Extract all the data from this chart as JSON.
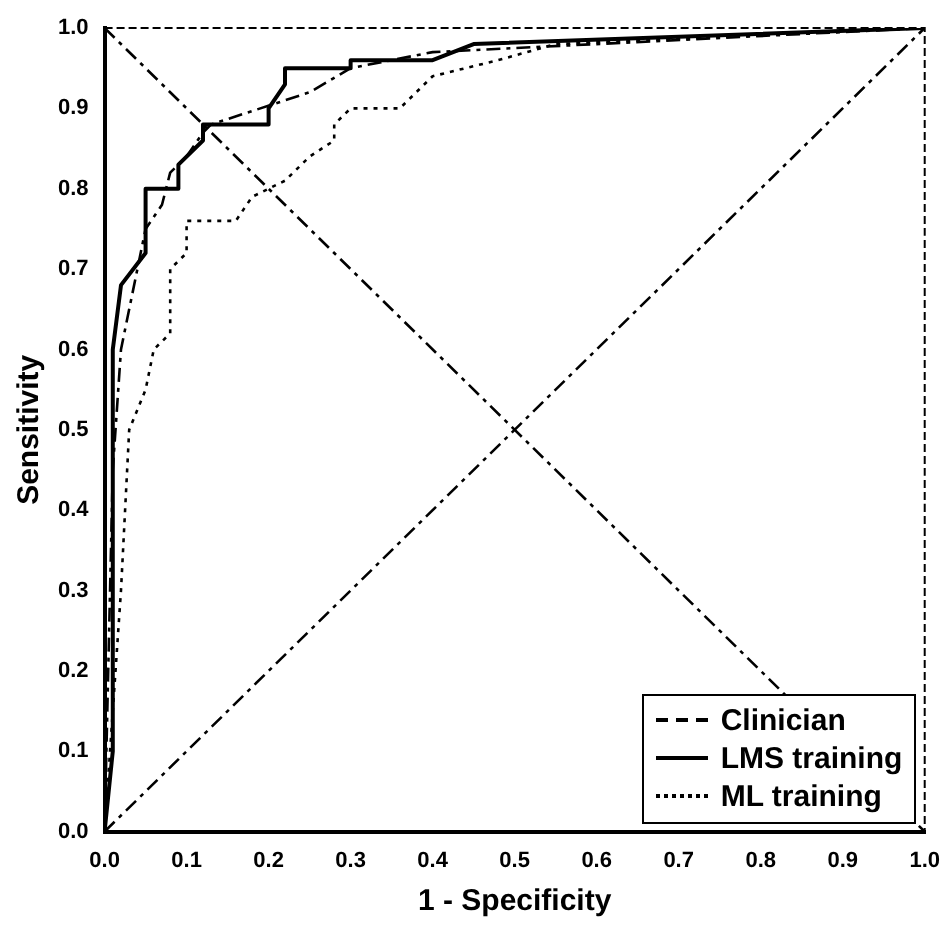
{
  "chart_data": {
    "type": "line",
    "xlabel": "1 - Specificity",
    "ylabel": "Sensitivity",
    "xlim": [
      0,
      1
    ],
    "ylim": [
      0,
      1
    ],
    "xticks": [
      {
        "value": 0,
        "label": "0.0"
      },
      {
        "value": 0.1,
        "label": "0.1"
      },
      {
        "value": 0.2,
        "label": "0.2"
      },
      {
        "value": 0.3,
        "label": "0.3"
      },
      {
        "value": 0.4,
        "label": "0.4"
      },
      {
        "value": 0.5,
        "label": "0.5"
      },
      {
        "value": 0.6,
        "label": "0.6"
      },
      {
        "value": 0.7,
        "label": "0.7"
      },
      {
        "value": 0.8,
        "label": "0.8"
      },
      {
        "value": 0.9,
        "label": "0.9"
      },
      {
        "value": 1,
        "label": "1.0"
      }
    ],
    "yticks": [
      {
        "value": 0,
        "label": "0.0"
      },
      {
        "value": 0.1,
        "label": "0.1"
      },
      {
        "value": 0.2,
        "label": "0.2"
      },
      {
        "value": 0.3,
        "label": "0.3"
      },
      {
        "value": 0.4,
        "label": "0.4"
      },
      {
        "value": 0.5,
        "label": "0.5"
      },
      {
        "value": 0.6,
        "label": "0.6"
      },
      {
        "value": 0.7,
        "label": "0.7"
      },
      {
        "value": 0.8,
        "label": "0.8"
      },
      {
        "value": 0.9,
        "label": "0.9"
      },
      {
        "value": 1,
        "label": "1.0"
      }
    ],
    "grid": false,
    "legend": "bottom right",
    "marker": "none",
    "series": [
      {
        "name": "Clinician",
        "color": "#000000",
        "line_style": "dashed",
        "x": [
          0,
          0.01,
          0.02,
          0.04,
          0.05,
          0.07,
          0.08,
          0.1,
          0.12,
          0.13,
          0.25,
          0.3,
          0.4,
          1
        ],
        "values": [
          0,
          0.45,
          0.6,
          0.7,
          0.75,
          0.78,
          0.82,
          0.84,
          0.87,
          0.88,
          0.92,
          0.95,
          0.97,
          1
        ]
      },
      {
        "name": "LMS training",
        "color": "#000000",
        "line_style": "solid",
        "x": [
          0,
          0.01,
          0.01,
          0.02,
          0.05,
          0.05,
          0.09,
          0.09,
          0.12,
          0.12,
          0.2,
          0.2,
          0.22,
          0.22,
          0.3,
          0.3,
          0.4,
          0.45,
          1
        ],
        "values": [
          0,
          0.1,
          0.6,
          0.68,
          0.72,
          0.8,
          0.8,
          0.83,
          0.86,
          0.88,
          0.88,
          0.9,
          0.93,
          0.95,
          0.95,
          0.96,
          0.96,
          0.98,
          1
        ]
      },
      {
        "name": "ML training",
        "color": "#000000",
        "line_style": "dotted",
        "x": [
          0,
          0.02,
          0.03,
          0.05,
          0.06,
          0.08,
          0.08,
          0.1,
          0.1,
          0.16,
          0.18,
          0.2,
          0.22,
          0.25,
          0.28,
          0.28,
          0.3,
          0.36,
          0.4,
          0.48,
          0.55,
          1
        ],
        "values": [
          0,
          0.3,
          0.5,
          0.55,
          0.6,
          0.62,
          0.7,
          0.72,
          0.76,
          0.76,
          0.79,
          0.8,
          0.81,
          0.84,
          0.86,
          0.88,
          0.9,
          0.9,
          0.94,
          0.96,
          0.98,
          1
        ]
      },
      {
        "color": "#000000",
        "line_style": "dashed",
        "x": [
          0,
          1
        ],
        "values": [
          0,
          1
        ]
      },
      {
        "color": "#000000",
        "line_style": "dashed",
        "x": [
          0,
          1
        ],
        "values": [
          1,
          0
        ]
      }
    ]
  }
}
